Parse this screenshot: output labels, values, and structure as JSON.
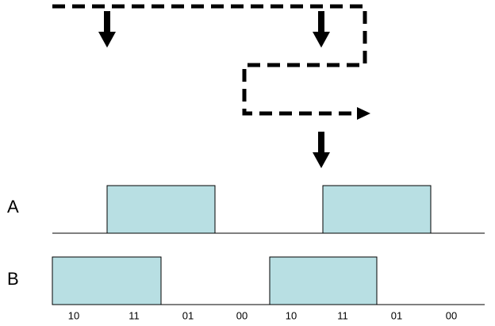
{
  "rows": [
    {
      "label": "A"
    },
    {
      "label": "B"
    }
  ],
  "states": [
    "10",
    "11",
    "01",
    "00",
    "10",
    "11",
    "01",
    "00"
  ]
}
